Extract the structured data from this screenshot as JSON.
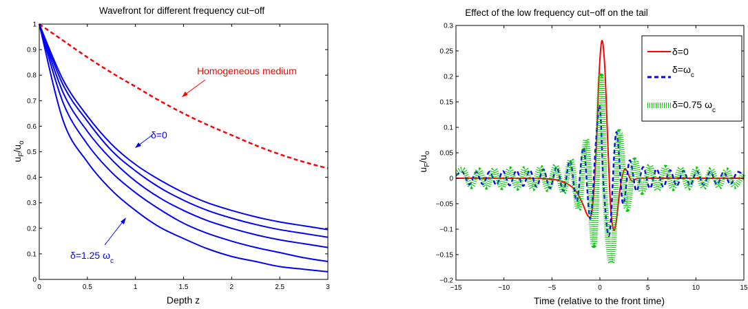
{
  "colors": {
    "blue": "#0000ff",
    "red": "#ff0000",
    "green": "#00cc00",
    "axes": "#000000"
  },
  "chart_data": [
    {
      "type": "line",
      "title": "Wavefront for different frequency cut−off",
      "xlabel": "Depth z",
      "ylabel": {
        "main": "u",
        "sub1": "F",
        "mid": "/u",
        "sub2": "o"
      },
      "xlim": [
        0,
        3
      ],
      "ylim": [
        0,
        1
      ],
      "xticks": [
        "0",
        "0.5",
        "1",
        "1.5",
        "2",
        "2.5",
        "3"
      ],
      "xtick_values": [
        0,
        0.5,
        1,
        1.5,
        2,
        2.5,
        3
      ],
      "yticks": [
        "0",
        "0.1",
        "0.2",
        "0.3",
        "0.4",
        "0.5",
        "0.6",
        "0.7",
        "0.8",
        "0.9",
        "1"
      ],
      "ytick_values": [
        0,
        0.1,
        0.2,
        0.3,
        0.4,
        0.5,
        0.6,
        0.7,
        0.8,
        0.9,
        1
      ],
      "x": [
        0,
        0.25,
        0.5,
        0.75,
        1,
        1.25,
        1.5,
        1.75,
        2,
        2.25,
        2.5,
        2.75,
        3
      ],
      "series": [
        {
          "style": "dashed",
          "color": "red",
          "values": [
            1,
            0.935,
            0.87,
            0.81,
            0.755,
            0.7,
            0.65,
            0.605,
            0.565,
            0.525,
            0.49,
            0.46,
            0.435
          ]
        },
        {
          "style": "solid",
          "color": "blue",
          "values": [
            1,
            0.78,
            0.64,
            0.53,
            0.45,
            0.39,
            0.34,
            0.3,
            0.27,
            0.245,
            0.225,
            0.21,
            0.195
          ]
        },
        {
          "style": "solid",
          "color": "blue",
          "values": [
            1,
            0.76,
            0.62,
            0.505,
            0.425,
            0.36,
            0.31,
            0.27,
            0.24,
            0.215,
            0.195,
            0.18,
            0.165
          ]
        },
        {
          "style": "solid",
          "color": "blue",
          "values": [
            1,
            0.73,
            0.58,
            0.47,
            0.385,
            0.32,
            0.27,
            0.23,
            0.2,
            0.175,
            0.155,
            0.14,
            0.125
          ]
        },
        {
          "style": "solid",
          "color": "blue",
          "values": [
            1,
            0.69,
            0.53,
            0.42,
            0.34,
            0.275,
            0.22,
            0.18,
            0.15,
            0.125,
            0.105,
            0.085,
            0.07
          ]
        },
        {
          "style": "solid",
          "color": "blue",
          "values": [
            1,
            0.62,
            0.46,
            0.35,
            0.27,
            0.205,
            0.16,
            0.12,
            0.09,
            0.07,
            0.05,
            0.04,
            0.03
          ]
        }
      ],
      "annotations": {
        "homogeneous": "Homogeneous medium",
        "delta0": "δ=0",
        "delta125_main": "δ=1.25 ω",
        "delta125_sub": "c"
      }
    },
    {
      "type": "line",
      "title": "Effect of the low frequency cut−off on the tail",
      "xlabel": "Time (relative to the front time)",
      "ylabel": {
        "main": "u",
        "sub1": "F",
        "mid": "/u",
        "sub2": "o"
      },
      "xlim": [
        -15,
        15
      ],
      "ylim": [
        -0.2,
        0.3
      ],
      "xticks": [
        "−15",
        "−10",
        "−5",
        "0",
        "5",
        "10",
        "15"
      ],
      "xtick_values": [
        -15,
        -10,
        -5,
        0,
        5,
        10,
        15
      ],
      "yticks": [
        "−0.2",
        "−0.15",
        "−0.1",
        "−0.05",
        "0",
        "0.05",
        "0.1",
        "0.15",
        "0.2",
        "0.25",
        "0.3"
      ],
      "ytick_values": [
        -0.2,
        -0.15,
        -0.1,
        -0.05,
        0,
        0.05,
        0.1,
        0.15,
        0.2,
        0.25,
        0.3
      ],
      "legend_position": "top-right",
      "series": [
        {
          "name": "δ=0",
          "style": "solid",
          "color": "red",
          "x": [
            -15,
            -8,
            -5,
            -3.5,
            -2.5,
            -1.8,
            -1.2,
            -0.8,
            -0.4,
            -0.1,
            0.2,
            0.5,
            0.8,
            1.1,
            1.4,
            1.7,
            2.1,
            2.5,
            2.8,
            3.3,
            4,
            6,
            15
          ],
          "y": [
            0,
            0,
            -0.002,
            -0.01,
            -0.025,
            -0.05,
            -0.075,
            -0.06,
            0.05,
            0.2,
            0.27,
            0.22,
            0.08,
            -0.05,
            -0.1,
            -0.085,
            -0.02,
            0.015,
            0.015,
            -0.005,
            0,
            0,
            0
          ]
        },
        {
          "name": "δ=ω",
          "name_sub": "c",
          "style": "dashed",
          "color": "blue",
          "x": [
            -15,
            -14.3,
            -13.6,
            -12.9,
            -12.2,
            -11.5,
            -10.8,
            -10.1,
            -9.4,
            -8.7,
            -8,
            -7.3,
            -6.6,
            -5.9,
            -5.2,
            -4.5,
            -3.8,
            -3.1,
            -2.4,
            -1.7,
            -1,
            -0.4,
            0,
            0.4,
            1,
            1.7,
            2.4,
            3.1,
            3.8,
            4.5,
            5.2,
            5.9,
            6.6,
            7.3,
            8,
            8.7,
            9.4,
            10.1,
            10.8,
            11.5,
            12.2,
            12.9,
            13.6,
            14.3,
            15
          ],
          "y": [
            0.005,
            0.012,
            -0.012,
            0.012,
            -0.012,
            0.013,
            -0.013,
            0.014,
            -0.014,
            0.015,
            -0.015,
            0.016,
            -0.017,
            0.018,
            -0.02,
            0.022,
            -0.025,
            0.035,
            -0.045,
            0.06,
            -0.08,
            0.075,
            0.14,
            -0.02,
            -0.11,
            0.09,
            -0.05,
            0.035,
            -0.025,
            0.022,
            -0.02,
            0.018,
            -0.017,
            0.016,
            -0.015,
            0.015,
            -0.014,
            0.014,
            -0.013,
            0.013,
            -0.012,
            0.012,
            -0.012,
            0.012,
            0.005
          ]
        },
        {
          "name": "δ=0.75 ω",
          "name_sub": "c",
          "style": "dotted",
          "color": "green",
          "x": [
            -15,
            -14.2,
            -13.4,
            -12.6,
            -11.8,
            -11,
            -10.2,
            -9.4,
            -8.6,
            -7.8,
            -7,
            -6.2,
            -5.4,
            -4.6,
            -3.8,
            -3,
            -2.2,
            -1.4,
            -0.6,
            0.1,
            0.6,
            1.3,
            2,
            2.8,
            3.6,
            4.4,
            5.2,
            6,
            6.8,
            7.6,
            8.4,
            9.2,
            10,
            10.8,
            11.6,
            12.4,
            13.2,
            14,
            15
          ],
          "y": [
            0.01,
            0.016,
            -0.016,
            0.016,
            -0.017,
            0.017,
            -0.018,
            0.018,
            -0.019,
            0.019,
            -0.02,
            0.021,
            -0.022,
            0.024,
            -0.027,
            0.035,
            -0.06,
            0.075,
            -0.13,
            0.2,
            -0.06,
            -0.16,
            0.09,
            -0.06,
            0.035,
            -0.027,
            0.024,
            -0.022,
            0.021,
            -0.02,
            0.019,
            -0.019,
            0.018,
            -0.018,
            0.017,
            -0.017,
            0.016,
            -0.016,
            0.01
          ]
        }
      ]
    }
  ]
}
